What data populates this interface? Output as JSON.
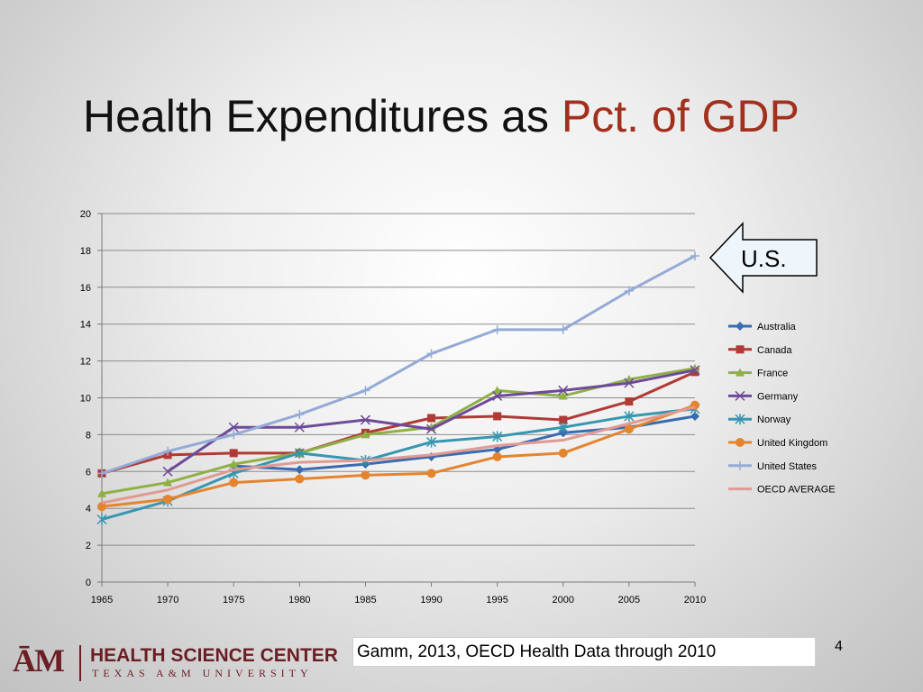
{
  "slide": {
    "title_main": "Health Expenditures as ",
    "title_accent": "Pct. of GDP",
    "callout": "U.S.",
    "source": "Gamm, 2013, OECD Health Data through 2010",
    "page_number": "4",
    "logo": {
      "mark": "ĀM",
      "line1": "HEALTH SCIENCE CENTER",
      "line2": "TEXAS A&M UNIVERSITY",
      "color": "#6b1e24"
    },
    "accent_color": "#a1301d"
  },
  "chart_data": {
    "type": "line",
    "x": [
      1965,
      1970,
      1975,
      1980,
      1985,
      1990,
      1995,
      2000,
      2005,
      2010
    ],
    "ylim": [
      0,
      20
    ],
    "yticks": [
      0,
      2,
      4,
      6,
      8,
      10,
      12,
      14,
      16,
      18,
      20
    ],
    "grid": true,
    "legend_position": "right",
    "series": [
      {
        "name": "Australia",
        "color": "#3a6bb0",
        "marker": "diamond",
        "values": [
          null,
          null,
          6.3,
          6.1,
          6.4,
          6.8,
          7.2,
          8.1,
          8.4,
          9.0
        ]
      },
      {
        "name": "Canada",
        "color": "#b03a36",
        "marker": "square",
        "values": [
          5.9,
          6.9,
          7.0,
          7.0,
          8.1,
          8.9,
          9.0,
          8.8,
          9.8,
          11.4
        ]
      },
      {
        "name": "France",
        "color": "#8fb046",
        "marker": "triangle",
        "values": [
          4.8,
          5.4,
          6.4,
          7.0,
          8.0,
          8.4,
          10.4,
          10.1,
          11.0,
          11.6
        ]
      },
      {
        "name": "Germany",
        "color": "#6e4a99",
        "marker": "x",
        "values": [
          null,
          6.0,
          8.4,
          8.4,
          8.8,
          8.3,
          10.1,
          10.4,
          10.8,
          11.5
        ]
      },
      {
        "name": "Norway",
        "color": "#3796b0",
        "marker": "star",
        "values": [
          3.4,
          4.4,
          5.9,
          7.0,
          6.6,
          7.6,
          7.9,
          8.4,
          9.0,
          9.4
        ]
      },
      {
        "name": "United Kingdom",
        "color": "#e5842e",
        "marker": "circle",
        "values": [
          4.1,
          4.5,
          5.4,
          5.6,
          5.8,
          5.9,
          6.8,
          7.0,
          8.3,
          9.6
        ]
      },
      {
        "name": "United States",
        "color": "#94abd6",
        "marker": "plus",
        "values": [
          5.9,
          7.1,
          8.0,
          9.1,
          10.4,
          12.4,
          13.7,
          13.7,
          15.8,
          17.7
        ]
      },
      {
        "name": "OECD AVERAGE",
        "color": "#e09a92",
        "marker": "none",
        "values": [
          4.3,
          5.0,
          6.1,
          6.5,
          6.6,
          6.9,
          7.4,
          7.7,
          8.6,
          9.5
        ]
      }
    ]
  }
}
